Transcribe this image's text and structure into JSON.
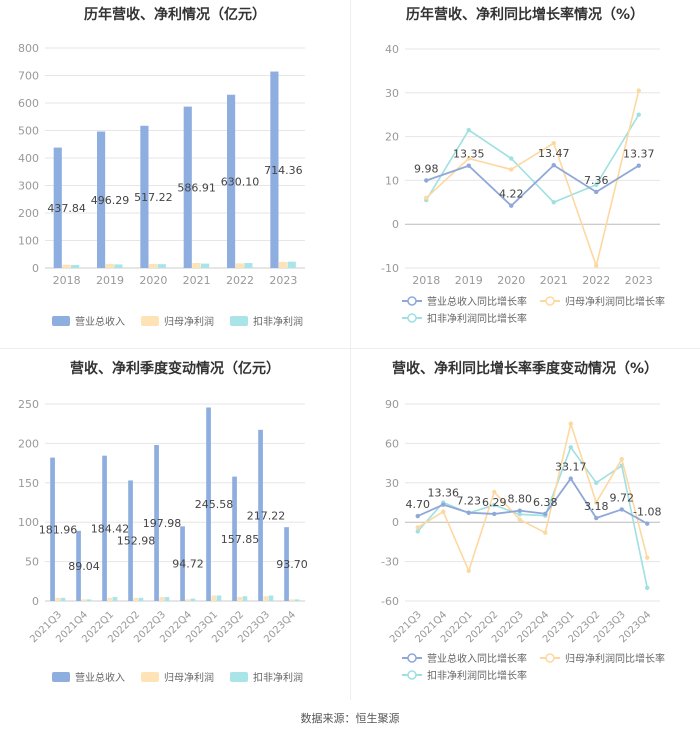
{
  "colors": {
    "revenue": "#8eaee0",
    "net_profit": "#fde3b5",
    "deducted_profit": "#a9e4e8",
    "revenue_line": "#8fa8d8",
    "net_profit_line": "#fdd8a0",
    "deducted_line": "#9fe0e2",
    "axis_text": "#999999",
    "grid": "#e6e6e6"
  },
  "source_text": "数据来源：恒生聚源",
  "chart_data": [
    {
      "type": "bar",
      "title": "历年营收、净利情况（亿元）",
      "categories": [
        "2018",
        "2019",
        "2020",
        "2021",
        "2022",
        "2023"
      ],
      "ylim": [
        0,
        800
      ],
      "yticks": [
        0,
        100,
        200,
        300,
        400,
        500,
        600,
        700,
        800
      ],
      "series": [
        {
          "name": "营业总收入",
          "values": [
            437.84,
            496.29,
            517.22,
            586.91,
            630.1,
            714.36
          ],
          "labels": [
            "437.84",
            "496.29",
            "517.22",
            "586.91",
            "630.10",
            "714.36"
          ]
        },
        {
          "name": "归母净利润",
          "values": [
            12,
            15,
            15,
            18,
            17,
            22
          ]
        },
        {
          "name": "扣非净利润",
          "values": [
            11,
            13,
            14,
            16,
            18,
            23
          ]
        }
      ],
      "legend": "bottom"
    },
    {
      "type": "line",
      "title": "历年营收、净利同比增长率情况（%）",
      "categories": [
        "2018",
        "2019",
        "2020",
        "2021",
        "2022",
        "2023"
      ],
      "ylim": [
        -10,
        40
      ],
      "yticks": [
        -10,
        0,
        10,
        20,
        30,
        40
      ],
      "series": [
        {
          "name": "营业总收入同比增长率",
          "values": [
            9.98,
            13.35,
            4.22,
            13.47,
            7.36,
            13.37
          ],
          "labels": [
            "9.98",
            "13.35",
            "4.22",
            "13.47",
            "7.36",
            "13.37"
          ]
        },
        {
          "name": "归母净利润同比增长率",
          "values": [
            6,
            15,
            12.5,
            18.5,
            -9.5,
            30.5
          ]
        },
        {
          "name": "扣非净利润同比增长率",
          "values": [
            5.5,
            21.5,
            15,
            5,
            9,
            25
          ]
        }
      ],
      "legend": "bottom"
    },
    {
      "type": "bar",
      "title": "营收、净利季度变动情况（亿元）",
      "categories": [
        "2021Q3",
        "2021Q4",
        "2022Q1",
        "2022Q2",
        "2022Q3",
        "2022Q4",
        "2023Q1",
        "2023Q2",
        "2023Q3",
        "2023Q4"
      ],
      "ylim": [
        0,
        250
      ],
      "yticks": [
        0,
        50,
        100,
        150,
        200,
        250
      ],
      "series": [
        {
          "name": "营业总收入",
          "values": [
            181.96,
            89.04,
            184.42,
            152.98,
            197.98,
            94.72,
            245.58,
            157.85,
            217.22,
            93.7
          ],
          "labels": [
            "181.96",
            "89.04",
            "184.42",
            "152.98",
            "197.98",
            "94.72",
            "245.58",
            "157.85",
            "217.22",
            "93.70"
          ]
        },
        {
          "name": "归母净利润",
          "values": [
            4,
            2,
            4,
            4,
            5,
            2,
            7,
            5,
            6,
            2
          ]
        },
        {
          "name": "扣非净利润",
          "values": [
            4,
            2,
            5,
            4,
            5,
            3,
            7,
            6,
            7,
            2
          ]
        }
      ],
      "legend": "bottom"
    },
    {
      "type": "line",
      "title": "营收、净利同比增长率季度变动情况（%）",
      "categories": [
        "2021Q3",
        "2021Q4",
        "2022Q1",
        "2022Q2",
        "2022Q3",
        "2022Q4",
        "2023Q1",
        "2023Q2",
        "2023Q3",
        "2023Q4"
      ],
      "ylim": [
        -60,
        90
      ],
      "yticks": [
        -60,
        -30,
        0,
        30,
        60,
        90
      ],
      "series": [
        {
          "name": "营业总收入同比增长率",
          "values": [
            4.7,
            13.36,
            7.23,
            6.29,
            8.8,
            6.38,
            33.17,
            3.18,
            9.72,
            -1.08
          ],
          "labels": [
            "4.70",
            "13.36",
            "7.23",
            "6.29",
            "8.80",
            "6.38",
            "33.17",
            "3.18",
            "9.72",
            "-1.08"
          ]
        },
        {
          "name": "归母净利润同比增长率",
          "values": [
            -4,
            8,
            -37,
            23,
            2,
            -8,
            75,
            15,
            48,
            -27
          ]
        },
        {
          "name": "扣非净利润同比增长率",
          "values": [
            -7,
            15,
            7,
            13,
            6,
            5,
            57,
            30,
            43,
            -50
          ]
        }
      ],
      "legend": "bottom"
    }
  ]
}
